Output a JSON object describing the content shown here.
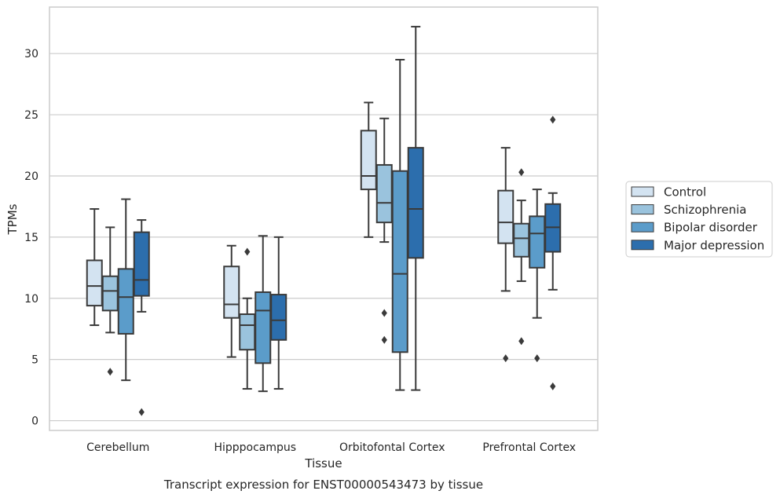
{
  "caption": "Transcript expression for ENST00000543473 by tissue",
  "chart_data": {
    "type": "box",
    "xlabel": "Tissue",
    "ylabel": "TPMs",
    "ylim": [
      -0.8,
      33.8
    ],
    "yticks": [
      0,
      5,
      10,
      15,
      20,
      25,
      30
    ],
    "grid": "horizontal",
    "legend_placement": "right",
    "categories": [
      "Cerebellum",
      "Hipppocampus",
      "Orbitofontal Cortex",
      "Prefrontal Cortex"
    ],
    "series": [
      {
        "name": "Control",
        "color": "#d3e3f1",
        "boxes": [
          {
            "whislo": 7.8,
            "q1": 9.4,
            "med": 11.0,
            "q3": 13.1,
            "whishi": 17.3,
            "fliers": []
          },
          {
            "whislo": 5.2,
            "q1": 8.4,
            "med": 9.5,
            "q3": 12.6,
            "whishi": 14.3,
            "fliers": []
          },
          {
            "whislo": 15.0,
            "q1": 18.9,
            "med": 20.0,
            "q3": 23.7,
            "whishi": 26.0,
            "fliers": []
          },
          {
            "whislo": 10.6,
            "q1": 14.5,
            "med": 16.2,
            "q3": 18.8,
            "whishi": 22.3,
            "fliers": [
              5.1
            ]
          }
        ]
      },
      {
        "name": "Schizophrenia",
        "color": "#9ac3dd",
        "boxes": [
          {
            "whislo": 7.2,
            "q1": 9.0,
            "med": 10.6,
            "q3": 11.8,
            "whishi": 15.8,
            "fliers": [
              4.0
            ]
          },
          {
            "whislo": 2.6,
            "q1": 5.8,
            "med": 7.8,
            "q3": 8.7,
            "whishi": 10.0,
            "fliers": [
              13.8
            ]
          },
          {
            "whislo": 14.6,
            "q1": 16.2,
            "med": 17.8,
            "q3": 20.9,
            "whishi": 24.7,
            "fliers": [
              8.8,
              6.6
            ]
          },
          {
            "whislo": 11.4,
            "q1": 13.4,
            "med": 14.9,
            "q3": 16.1,
            "whishi": 18.0,
            "fliers": [
              20.3,
              6.5
            ]
          }
        ]
      },
      {
        "name": "Bipolar disorder",
        "color": "#5b9cca",
        "boxes": [
          {
            "whislo": 3.3,
            "q1": 7.1,
            "med": 10.1,
            "q3": 12.4,
            "whishi": 18.1,
            "fliers": []
          },
          {
            "whislo": 2.4,
            "q1": 4.7,
            "med": 9.0,
            "q3": 10.5,
            "whishi": 15.1,
            "fliers": []
          },
          {
            "whislo": 2.5,
            "q1": 5.6,
            "med": 12.0,
            "q3": 20.4,
            "whishi": 29.5,
            "fliers": []
          },
          {
            "whislo": 8.4,
            "q1": 12.5,
            "med": 15.3,
            "q3": 16.7,
            "whishi": 18.9,
            "fliers": [
              5.1
            ]
          }
        ]
      },
      {
        "name": "Major depression",
        "color": "#2c6ead",
        "boxes": [
          {
            "whislo": 8.9,
            "q1": 10.2,
            "med": 11.5,
            "q3": 15.4,
            "whishi": 16.4,
            "fliers": [
              0.7
            ]
          },
          {
            "whislo": 2.6,
            "q1": 6.6,
            "med": 8.2,
            "q3": 10.3,
            "whishi": 15.0,
            "fliers": []
          },
          {
            "whislo": 2.5,
            "q1": 13.3,
            "med": 17.3,
            "q3": 22.3,
            "whishi": 32.2,
            "fliers": []
          },
          {
            "whislo": 10.7,
            "q1": 13.8,
            "med": 15.8,
            "q3": 17.7,
            "whishi": 18.6,
            "fliers": [
              24.6,
              2.8
            ]
          }
        ]
      }
    ]
  }
}
